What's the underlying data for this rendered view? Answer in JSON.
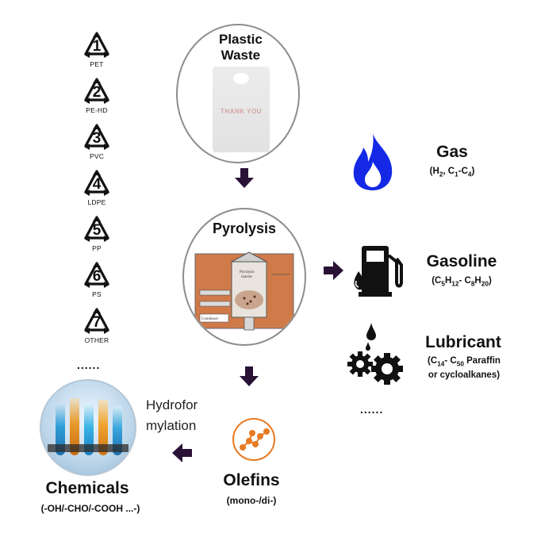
{
  "recycling_codes": [
    {
      "num": "1",
      "label": "PET"
    },
    {
      "num": "2",
      "label": "PE-HD"
    },
    {
      "num": "3",
      "label": "PVC"
    },
    {
      "num": "4",
      "label": "LDPE"
    },
    {
      "num": "5",
      "label": "PP"
    },
    {
      "num": "6",
      "label": "PS"
    },
    {
      "num": "7",
      "label": "OTHER"
    }
  ],
  "codes_more": "......",
  "plastic_waste": {
    "title_line1": "Plastic",
    "title_line2": "Waste",
    "bag_text": "THANK YOU"
  },
  "pyrolysis": {
    "title": "Pyrolysis",
    "reactor_label": "Pyrolysis reactor",
    "condenser_label": "Condenser"
  },
  "products": {
    "gas": {
      "title": "Gas"
    },
    "gasoline": {
      "title": "Gasoline"
    },
    "lubricant": {
      "title": "Lubricant",
      "sub_line2": "or cycloalkanes)"
    },
    "more": "......"
  },
  "olefins": {
    "title": "Olefins",
    "sub": "(mono-/di-)"
  },
  "hydroformylation": {
    "line1": "Hydrofor",
    "line2": "mylation"
  },
  "chemicals": {
    "title": "Chemicals",
    "sub": "(-OH/-CHO/-COOH ...-)"
  },
  "colors": {
    "arrow": "#2a1236",
    "flame": "#1428e6",
    "olefin": "#e87a22",
    "reactor": "#d07a4a"
  }
}
